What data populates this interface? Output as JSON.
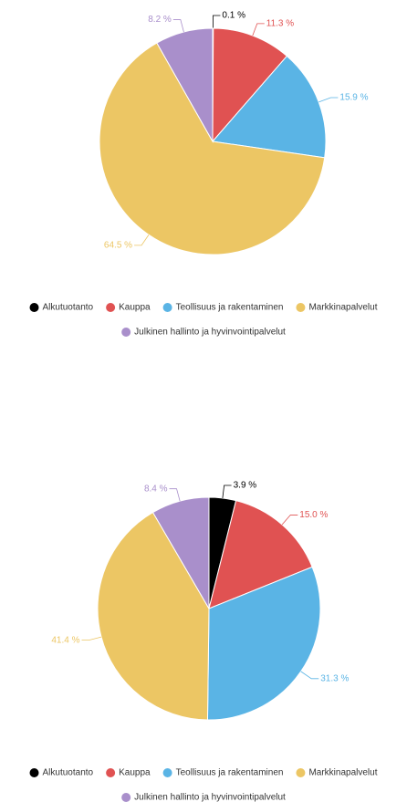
{
  "chart_data": [
    {
      "type": "pie",
      "categories": [
        "Alkutuotanto",
        "Kauppa",
        "Teollisuus ja rakentaminen",
        "Markkinapalvelut",
        "Julkinen hallinto ja hyvinvointipalvelut"
      ],
      "values": [
        0.1,
        11.3,
        15.9,
        64.5,
        8.2
      ],
      "value_labels": [
        "0.1 %",
        "11.3 %",
        "15.9 %",
        "64.5 %",
        "8.2 %"
      ],
      "colors": [
        "#000000",
        "#e05252",
        "#5ab4e5",
        "#ecc664",
        "#a98fcb"
      ],
      "legend": "bottom"
    },
    {
      "type": "pie",
      "categories": [
        "Alkutuotanto",
        "Kauppa",
        "Teollisuus ja rakentaminen",
        "Markkinapalvelut",
        "Julkinen hallinto ja hyvinvointipalvelut"
      ],
      "values": [
        3.9,
        15.0,
        31.3,
        41.4,
        8.4
      ],
      "value_labels": [
        "3.9 %",
        "15.0 %",
        "31.3 %",
        "41.4 %",
        "8.4 %"
      ],
      "colors": [
        "#000000",
        "#e05252",
        "#5ab4e5",
        "#ecc664",
        "#a98fcb"
      ],
      "legend": "bottom"
    }
  ]
}
